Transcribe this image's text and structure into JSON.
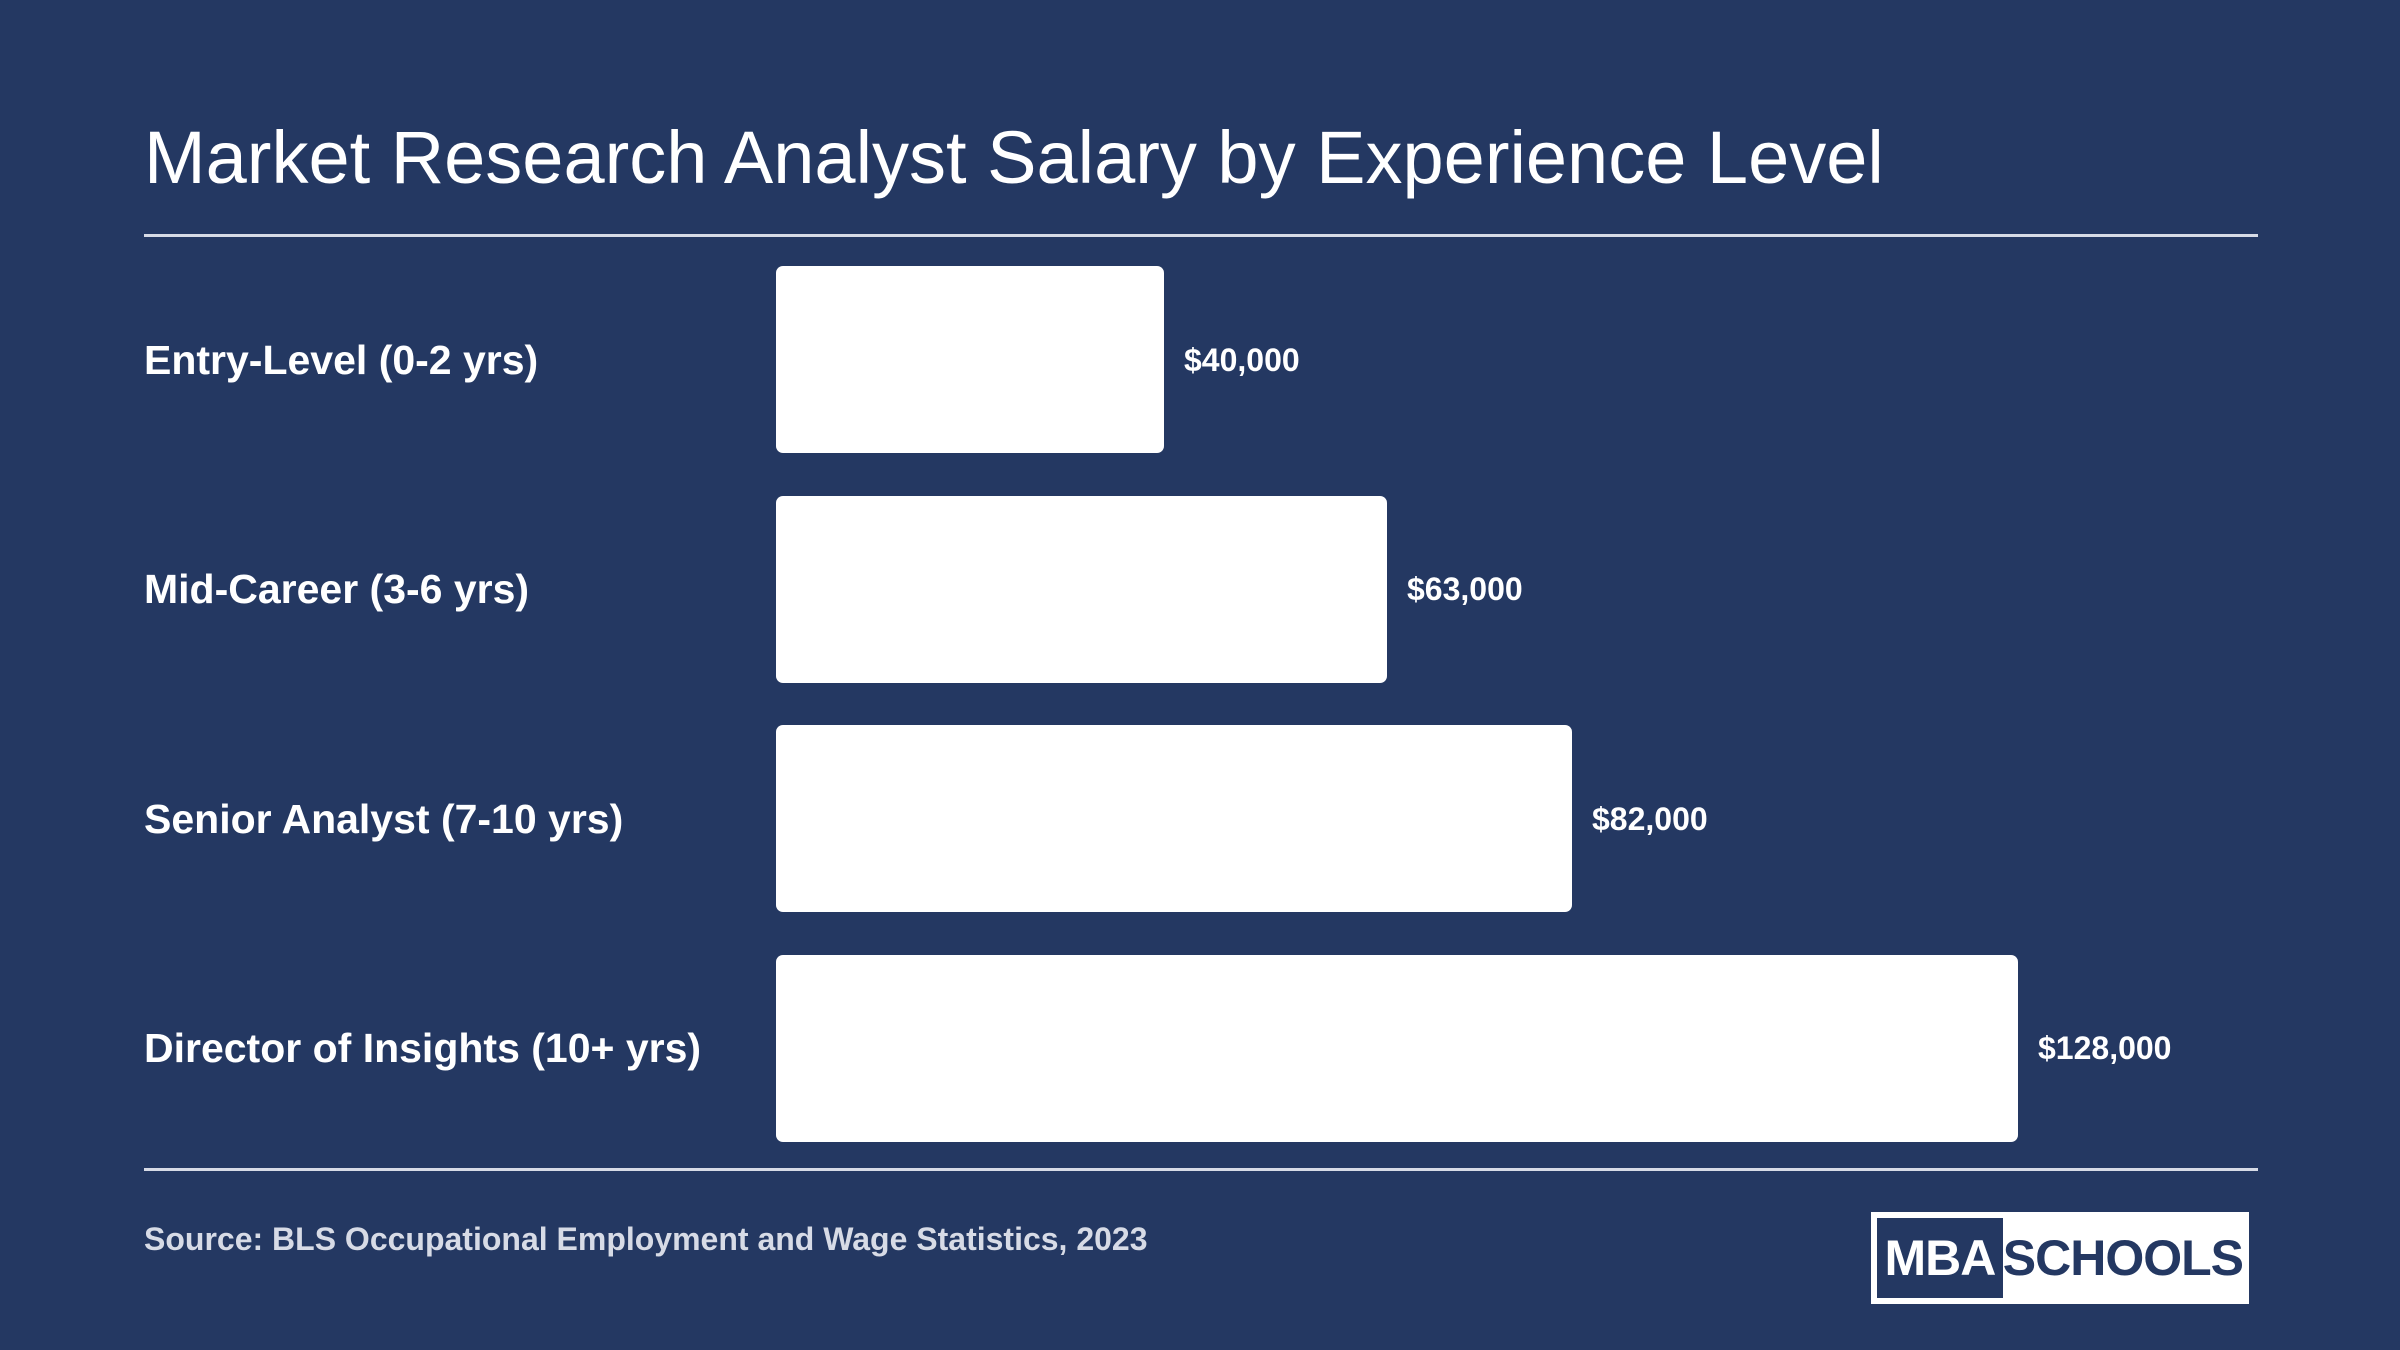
{
  "colors": {
    "background": "#243862",
    "bar": "#ffffff",
    "text": "#ffffff",
    "source_text": "#d7dbe6",
    "rule": "#d7dbe6"
  },
  "source": "Source: BLS Occupational Employment and Wage Statistics, 2023",
  "logo": {
    "left_text": "MBA",
    "right_text": "SCHOOLS"
  },
  "chart_data": {
    "type": "bar",
    "orientation": "horizontal",
    "title": "Market Research Analyst Salary by Experience Level",
    "categories": [
      "Entry-Level (0-2 yrs)",
      "Mid-Career (3-6 yrs)",
      "Senior Analyst (7-10 yrs)",
      "Director of Insights (10+ yrs)"
    ],
    "values": [
      40000,
      63000,
      82000,
      128000
    ],
    "value_labels": [
      "$40,000",
      "$63,000",
      "$82,000",
      "$128,000"
    ],
    "xlim": [
      0,
      128000
    ],
    "grid": false,
    "legend": "none"
  }
}
